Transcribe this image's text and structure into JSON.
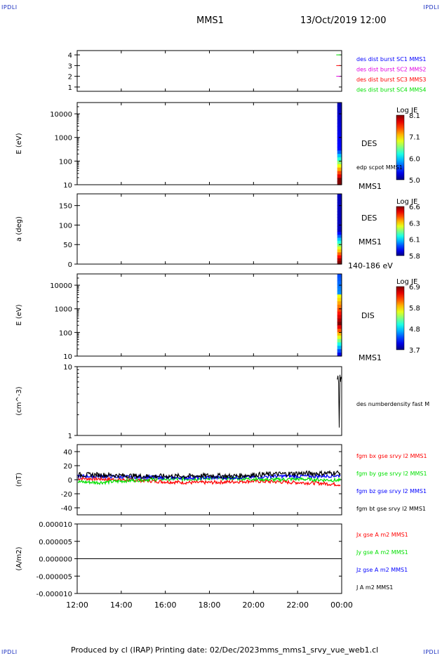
{
  "corner_label": "IPDLI",
  "header": {
    "spacecraft": "MMS1",
    "datetime": "13/Oct/2019 12:00"
  },
  "footer": {
    "produced": "Produced by cl (IRAP)",
    "printing": "Printing date: 02/Dec/2023",
    "file": "mms_mms1_srvy_vue_web1.cl"
  },
  "colors": {
    "blue": "#0000ff",
    "magenta": "#e000e0",
    "red": "#ff0000",
    "green": "#00e000",
    "black": "#000000"
  },
  "chart_data": [
    {
      "type": "scatter",
      "name": "burst-availability",
      "ylim": [
        0.6,
        4.4
      ],
      "yticks": [
        "1",
        "2",
        "3",
        "4"
      ],
      "ytick_values": [
        1,
        2,
        3,
        4
      ],
      "legend": [
        "des dist burst SC1 MMS1",
        "des dist burst SC2 MMS2",
        "des dist burst SC3 MMS3",
        "des dist burst SC4 MMS4"
      ],
      "legend_colors": [
        "#0000ff",
        "#e000e0",
        "#ff0000",
        "#00e000"
      ],
      "marks": [
        {
          "x": 23.85,
          "y": 4,
          "color": "#00e000"
        },
        {
          "x": 23.85,
          "y": 3,
          "color": "#ff0000"
        },
        {
          "x": 23.85,
          "y": 2,
          "color": "#e000e0"
        }
      ]
    },
    {
      "type": "heatmap",
      "name": "des-energy-spectrogram",
      "ylabel": "E (eV)",
      "yscale": "log",
      "ylim": [
        10,
        30000
      ],
      "yticks": [
        "10",
        "100",
        "1000",
        "10000"
      ],
      "ytick_values": [
        10,
        100,
        1000,
        10000
      ],
      "species": "DES",
      "sublabel": "edp scpot MMS1",
      "bottom_label": "MMS1",
      "colorbar": {
        "title": "Log JE",
        "ticks": [
          "8.1",
          "7.1",
          "6.0",
          "5.0"
        ],
        "range": [
          5.0,
          8.1
        ]
      },
      "data_x_range": [
        23.8,
        24.0
      ]
    },
    {
      "type": "heatmap",
      "name": "des-pitch-angle",
      "ylabel": "a (deg)",
      "ylim": [
        0,
        180
      ],
      "yticks": [
        "0",
        "50",
        "100",
        "150"
      ],
      "ytick_values": [
        0,
        50,
        100,
        150
      ],
      "species": "DES",
      "sublabel": "MMS1",
      "bottom_label": "140-186 eV",
      "colorbar": {
        "title": "Log JE",
        "ticks": [
          "6.6",
          "6.3",
          "6.1",
          "5.8"
        ],
        "range": [
          5.8,
          6.6
        ]
      },
      "data_x_range": [
        23.8,
        24.0
      ]
    },
    {
      "type": "heatmap",
      "name": "dis-energy-spectrogram",
      "ylabel": "E (eV)",
      "yscale": "log",
      "ylim": [
        10,
        30000
      ],
      "yticks": [
        "10",
        "100",
        "1000",
        "10000"
      ],
      "ytick_values": [
        10,
        100,
        1000,
        10000
      ],
      "species": "DIS",
      "bottom_label": "MMS1",
      "colorbar": {
        "title": "Log JE",
        "ticks": [
          "6.9",
          "5.8",
          "4.8",
          "3.7"
        ],
        "range": [
          3.7,
          6.9
        ]
      },
      "data_x_range": [
        23.8,
        24.0
      ]
    },
    {
      "type": "line",
      "name": "density",
      "ylabel": "(cm^-3)",
      "yscale": "log",
      "ylim": [
        1,
        10
      ],
      "yticks": [
        "1",
        "10"
      ],
      "ytick_values": [
        1,
        10
      ],
      "legend": [
        "des numberdensity fast M"
      ],
      "legend_colors": [
        "#000000"
      ],
      "series": [
        {
          "name": "des numberdensity fast M",
          "color": "#000000",
          "x": [
            23.8,
            23.83,
            23.86,
            23.89,
            23.92,
            23.94,
            23.97,
            24.0
          ],
          "y": [
            6.5,
            7.4,
            5.8,
            1.3,
            7.6,
            6.0,
            7.1,
            6.6
          ]
        }
      ]
    },
    {
      "type": "line",
      "name": "magnetic-field",
      "ylabel": "(nT)",
      "ylim": [
        -50,
        50
      ],
      "yticks": [
        "-40",
        "-20",
        "0",
        "20",
        "40"
      ],
      "ytick_values": [
        -40,
        -20,
        0,
        20,
        40
      ],
      "legend": [
        "fgm bx gse srvy l2 MMS1",
        "fgm by gse srvy l2 MMS1",
        "fgm bz gse srvy l2 MMS1",
        "fgm bt gse srvy l2 MMS1"
      ],
      "legend_colors": [
        "#ff0000",
        "#00e000",
        "#0000ff",
        "#000000"
      ],
      "series": [
        {
          "name": "fgm bx gse srvy l2 MMS1",
          "color": "#ff0000",
          "x": [
            12,
            13,
            14,
            15,
            16,
            17,
            18,
            19,
            20,
            21,
            22,
            23,
            24
          ],
          "y": [
            2,
            1,
            0,
            -1,
            -3,
            -4,
            -4,
            -3,
            -2,
            -3,
            -4,
            -5,
            -7
          ]
        },
        {
          "name": "fgm by gse srvy l2 MMS1",
          "color": "#00e000",
          "x": [
            12,
            13,
            14,
            15,
            16,
            17,
            18,
            19,
            20,
            21,
            22,
            23,
            24
          ],
          "y": [
            -3,
            -4,
            -2,
            0,
            1,
            1,
            2,
            2,
            1,
            0,
            1,
            0,
            -1
          ]
        },
        {
          "name": "fgm bz gse srvy l2 MMS1",
          "color": "#0000ff",
          "x": [
            12,
            13,
            14,
            15,
            16,
            17,
            18,
            19,
            20,
            21,
            22,
            23,
            24
          ],
          "y": [
            5,
            5,
            4,
            4,
            3,
            3,
            3,
            3,
            4,
            5,
            5,
            5,
            6
          ]
        },
        {
          "name": "fgm bt gse srvy l2 MMS1",
          "color": "#000000",
          "x": [
            12,
            13,
            14,
            15,
            16,
            17,
            18,
            19,
            20,
            21,
            22,
            23,
            24
          ],
          "y": [
            7,
            7,
            6,
            5,
            5,
            5,
            6,
            5,
            7,
            8,
            9,
            9,
            10
          ]
        }
      ]
    },
    {
      "type": "line",
      "name": "current-density",
      "ylabel": "(A/m2)",
      "ylim": [
        -1e-05,
        1e-05
      ],
      "yticks": [
        "-0.000010",
        "-0.000005",
        "0.000000",
        "0.000005",
        "0.000010"
      ],
      "ytick_values": [
        -1e-05,
        -5e-06,
        0,
        5e-06,
        1e-05
      ],
      "legend": [
        "Jx gse A m2 MMS1",
        "Jy gse A m2 MMS1",
        "Jz gse A m2 MMS1",
        "J A m2 MMS1"
      ],
      "legend_colors": [
        "#ff0000",
        "#00e000",
        "#0000ff",
        "#000000"
      ],
      "series": [
        {
          "name": "J A m2 MMS1",
          "color": "#000000",
          "x": [
            12,
            24
          ],
          "y": [
            0,
            0
          ]
        }
      ]
    }
  ],
  "time_axis": {
    "range": [
      12,
      24
    ],
    "ticks": [
      "12:00",
      "14:00",
      "16:00",
      "18:00",
      "20:00",
      "22:00",
      "00:00"
    ],
    "tick_values": [
      12,
      14,
      16,
      18,
      20,
      22,
      24
    ]
  }
}
